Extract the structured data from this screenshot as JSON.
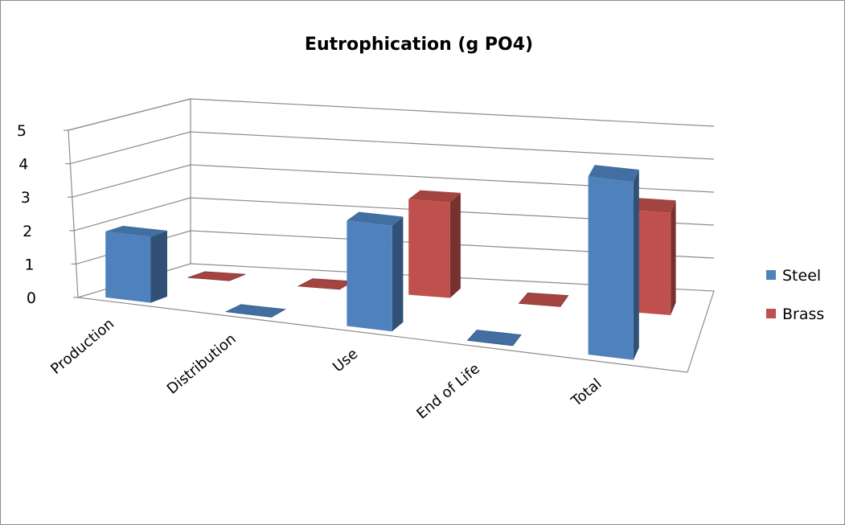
{
  "chart_data": {
    "type": "bar",
    "style": "3d-clustered-column",
    "title": "Eutrophication (g PO4)",
    "xlabel": "",
    "ylabel": "",
    "categories": [
      "Production",
      "Distribution",
      "Use",
      "End of Life",
      "Total"
    ],
    "series": [
      {
        "name": "Steel",
        "values": [
          2.0,
          0.0,
          3.2,
          0.0,
          5.4
        ],
        "color": "#4f81bd"
      },
      {
        "name": "Brass",
        "values": [
          0.0,
          0.0,
          2.9,
          0.0,
          3.1
        ],
        "color": "#c0504d"
      }
    ],
    "ylim": [
      0,
      5
    ],
    "yticks": [
      "0",
      "1",
      "2",
      "3",
      "4",
      "5"
    ],
    "grid": true,
    "legend_position": "right"
  }
}
